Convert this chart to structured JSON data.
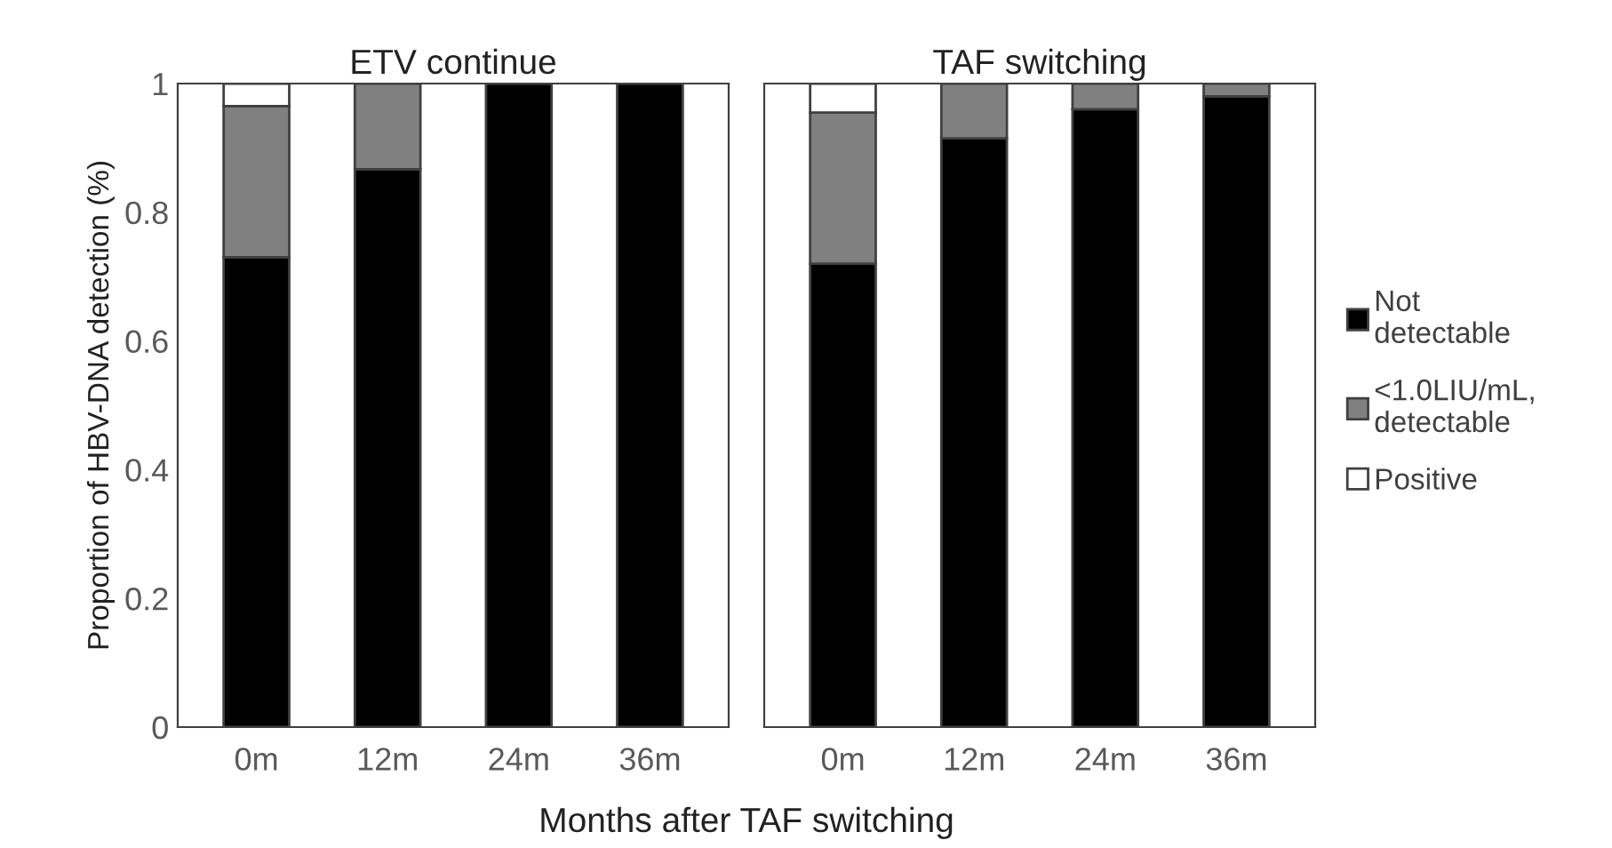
{
  "chart_data": [
    {
      "type": "bar",
      "title": "ETV continue",
      "xlabel": "Months after TAF switching",
      "ylabel": "Proportion of HBV-DNA detection (%)",
      "categories": [
        "0m",
        "12m",
        "24m",
        "36m"
      ],
      "stacked": true,
      "ylim": [
        0,
        1
      ],
      "yticks": [
        0,
        0.2,
        0.4,
        0.6,
        0.8,
        1
      ],
      "grid": false,
      "series": [
        {
          "color": "#000000",
          "values": [
            0.73,
            0.867,
            1.0,
            1.0
          ]
        },
        {
          "color": "#808080",
          "values": [
            0.235,
            0.133,
            0,
            0
          ]
        },
        {
          "color": "#ffffff",
          "values": [
            0.035,
            0,
            0,
            0
          ]
        }
      ]
    },
    {
      "type": "bar",
      "title": "TAF switching",
      "categories": [
        "0m",
        "12m",
        "24m",
        "36m"
      ],
      "stacked": true,
      "ylim": [
        0,
        1
      ],
      "tick_labels": "x",
      "grid": false,
      "legend": "right",
      "series": [
        {
          "name": "Not\ndetectable",
          "color": "#000000",
          "values": [
            0.72,
            0.915,
            0.96,
            0.98
          ]
        },
        {
          "name": "<1.0LIU/mL,\ndetectable",
          "color": "#808080",
          "values": [
            0.235,
            0.085,
            0.04,
            0.02
          ]
        },
        {
          "name": "Positive",
          "color": "#ffffff",
          "values": [
            0.045,
            0,
            0,
            0
          ]
        }
      ]
    }
  ]
}
